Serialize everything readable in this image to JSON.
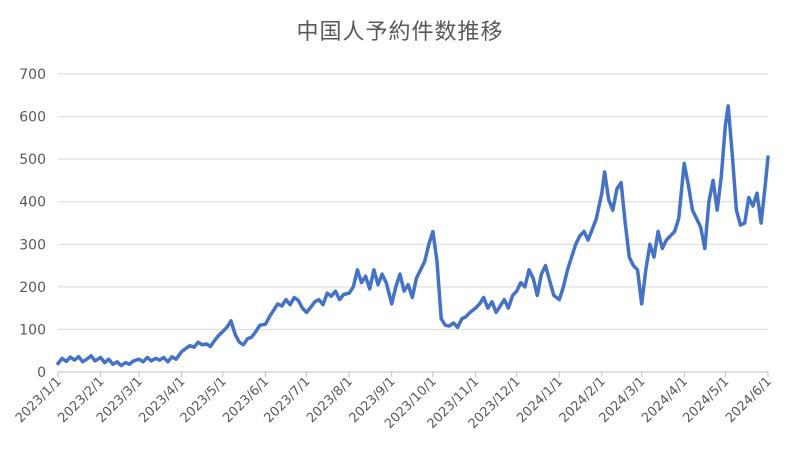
{
  "chart_data": {
    "type": "line",
    "title": "中国人予約件数推移",
    "xlabel": "",
    "ylabel": "",
    "ylim": [
      0,
      700
    ],
    "y_ticks": [
      0,
      100,
      200,
      300,
      400,
      500,
      600,
      700
    ],
    "x_tick_labels": [
      "2023/1/1",
      "2023/2/1",
      "2023/3/1",
      "2023/4/1",
      "2023/5/1",
      "2023/6/1",
      "2023/7/1",
      "2023/8/1",
      "2023/9/1",
      "2023/10/1",
      "2023/11/1",
      "2023/12/1",
      "2024/1/1",
      "2024/2/1",
      "2024/3/1",
      "2024/4/1",
      "2024/5/1",
      "2024/6/1"
    ],
    "grid": true,
    "legend": "none",
    "series_color": "#4472C4",
    "series": [
      {
        "values": [
          [
            "2023-01-01",
            20
          ],
          [
            "2023-01-04",
            32
          ],
          [
            "2023-01-07",
            25
          ],
          [
            "2023-01-10",
            35
          ],
          [
            "2023-01-13",
            28
          ],
          [
            "2023-01-16",
            36
          ],
          [
            "2023-01-19",
            24
          ],
          [
            "2023-01-22",
            30
          ],
          [
            "2023-01-25",
            38
          ],
          [
            "2023-01-28",
            26
          ],
          [
            "2023-02-01",
            34
          ],
          [
            "2023-02-04",
            22
          ],
          [
            "2023-02-07",
            30
          ],
          [
            "2023-02-10",
            18
          ],
          [
            "2023-02-13",
            24
          ],
          [
            "2023-02-16",
            15
          ],
          [
            "2023-02-19",
            22
          ],
          [
            "2023-02-22",
            18
          ],
          [
            "2023-02-25",
            26
          ],
          [
            "2023-03-01",
            30
          ],
          [
            "2023-03-04",
            24
          ],
          [
            "2023-03-07",
            34
          ],
          [
            "2023-03-10",
            26
          ],
          [
            "2023-03-13",
            32
          ],
          [
            "2023-03-16",
            28
          ],
          [
            "2023-03-19",
            34
          ],
          [
            "2023-03-22",
            24
          ],
          [
            "2023-03-25",
            36
          ],
          [
            "2023-03-28",
            30
          ],
          [
            "2023-04-01",
            48
          ],
          [
            "2023-04-04",
            55
          ],
          [
            "2023-04-07",
            62
          ],
          [
            "2023-04-10",
            58
          ],
          [
            "2023-04-13",
            70
          ],
          [
            "2023-04-16",
            64
          ],
          [
            "2023-04-19",
            66
          ],
          [
            "2023-04-22",
            60
          ],
          [
            "2023-04-25",
            74
          ],
          [
            "2023-04-28",
            86
          ],
          [
            "2023-05-01",
            95
          ],
          [
            "2023-05-04",
            105
          ],
          [
            "2023-05-07",
            120
          ],
          [
            "2023-05-10",
            88
          ],
          [
            "2023-05-13",
            70
          ],
          [
            "2023-05-16",
            64
          ],
          [
            "2023-05-19",
            78
          ],
          [
            "2023-05-22",
            82
          ],
          [
            "2023-05-25",
            95
          ],
          [
            "2023-05-28",
            110
          ],
          [
            "2023-06-01",
            112
          ],
          [
            "2023-06-04",
            130
          ],
          [
            "2023-06-07",
            145
          ],
          [
            "2023-06-10",
            160
          ],
          [
            "2023-06-13",
            155
          ],
          [
            "2023-06-16",
            170
          ],
          [
            "2023-06-19",
            158
          ],
          [
            "2023-06-22",
            175
          ],
          [
            "2023-06-25",
            168
          ],
          [
            "2023-06-28",
            150
          ],
          [
            "2023-07-01",
            140
          ],
          [
            "2023-07-04",
            152
          ],
          [
            "2023-07-07",
            165
          ],
          [
            "2023-07-10",
            170
          ],
          [
            "2023-07-13",
            158
          ],
          [
            "2023-07-16",
            185
          ],
          [
            "2023-07-19",
            178
          ],
          [
            "2023-07-22",
            190
          ],
          [
            "2023-07-25",
            170
          ],
          [
            "2023-07-28",
            182
          ],
          [
            "2023-08-01",
            185
          ],
          [
            "2023-08-04",
            200
          ],
          [
            "2023-08-07",
            240
          ],
          [
            "2023-08-10",
            210
          ],
          [
            "2023-08-13",
            225
          ],
          [
            "2023-08-16",
            195
          ],
          [
            "2023-08-19",
            240
          ],
          [
            "2023-08-22",
            205
          ],
          [
            "2023-08-25",
            230
          ],
          [
            "2023-08-28",
            210
          ],
          [
            "2023-09-01",
            160
          ],
          [
            "2023-09-04",
            200
          ],
          [
            "2023-09-07",
            230
          ],
          [
            "2023-09-10",
            190
          ],
          [
            "2023-09-13",
            205
          ],
          [
            "2023-09-16",
            175
          ],
          [
            "2023-09-19",
            220
          ],
          [
            "2023-09-22",
            240
          ],
          [
            "2023-09-25",
            260
          ],
          [
            "2023-09-28",
            300
          ],
          [
            "2023-10-01",
            330
          ],
          [
            "2023-10-04",
            260
          ],
          [
            "2023-10-07",
            125
          ],
          [
            "2023-10-10",
            110
          ],
          [
            "2023-10-13",
            108
          ],
          [
            "2023-10-16",
            115
          ],
          [
            "2023-10-19",
            105
          ],
          [
            "2023-10-22",
            125
          ],
          [
            "2023-10-25",
            130
          ],
          [
            "2023-10-28",
            140
          ],
          [
            "2023-11-01",
            150
          ],
          [
            "2023-11-04",
            160
          ],
          [
            "2023-11-07",
            175
          ],
          [
            "2023-11-10",
            150
          ],
          [
            "2023-11-13",
            165
          ],
          [
            "2023-11-16",
            140
          ],
          [
            "2023-11-19",
            155
          ],
          [
            "2023-11-22",
            170
          ],
          [
            "2023-11-25",
            150
          ],
          [
            "2023-11-28",
            180
          ],
          [
            "2023-12-01",
            190
          ],
          [
            "2023-12-04",
            210
          ],
          [
            "2023-12-07",
            200
          ],
          [
            "2023-12-10",
            240
          ],
          [
            "2023-12-13",
            220
          ],
          [
            "2023-12-16",
            180
          ],
          [
            "2023-12-19",
            230
          ],
          [
            "2023-12-22",
            250
          ],
          [
            "2023-12-25",
            215
          ],
          [
            "2023-12-28",
            180
          ],
          [
            "2024-01-01",
            170
          ],
          [
            "2024-01-04",
            200
          ],
          [
            "2024-01-07",
            240
          ],
          [
            "2024-01-10",
            270
          ],
          [
            "2024-01-13",
            300
          ],
          [
            "2024-01-16",
            320
          ],
          [
            "2024-01-19",
            330
          ],
          [
            "2024-01-22",
            310
          ],
          [
            "2024-01-25",
            335
          ],
          [
            "2024-01-28",
            360
          ],
          [
            "2024-02-01",
            420
          ],
          [
            "2024-02-03",
            470
          ],
          [
            "2024-02-06",
            405
          ],
          [
            "2024-02-09",
            380
          ],
          [
            "2024-02-12",
            430
          ],
          [
            "2024-02-15",
            445
          ],
          [
            "2024-02-18",
            350
          ],
          [
            "2024-02-21",
            270
          ],
          [
            "2024-02-24",
            250
          ],
          [
            "2024-02-27",
            240
          ],
          [
            "2024-03-01",
            160
          ],
          [
            "2024-03-04",
            240
          ],
          [
            "2024-03-07",
            300
          ],
          [
            "2024-03-10",
            270
          ],
          [
            "2024-03-13",
            330
          ],
          [
            "2024-03-16",
            290
          ],
          [
            "2024-03-19",
            310
          ],
          [
            "2024-03-22",
            320
          ],
          [
            "2024-03-25",
            330
          ],
          [
            "2024-03-28",
            360
          ],
          [
            "2024-04-01",
            490
          ],
          [
            "2024-04-04",
            440
          ],
          [
            "2024-04-07",
            380
          ],
          [
            "2024-04-10",
            360
          ],
          [
            "2024-04-13",
            340
          ],
          [
            "2024-04-16",
            290
          ],
          [
            "2024-04-19",
            400
          ],
          [
            "2024-04-22",
            450
          ],
          [
            "2024-04-25",
            380
          ],
          [
            "2024-04-28",
            460
          ],
          [
            "2024-05-01",
            580
          ],
          [
            "2024-05-03",
            625
          ],
          [
            "2024-05-06",
            510
          ],
          [
            "2024-05-09",
            380
          ],
          [
            "2024-05-12",
            345
          ],
          [
            "2024-05-15",
            350
          ],
          [
            "2024-05-18",
            410
          ],
          [
            "2024-05-21",
            390
          ],
          [
            "2024-05-24",
            420
          ],
          [
            "2024-05-27",
            350
          ],
          [
            "2024-05-30",
            440
          ],
          [
            "2024-06-01",
            505
          ]
        ]
      }
    ]
  }
}
